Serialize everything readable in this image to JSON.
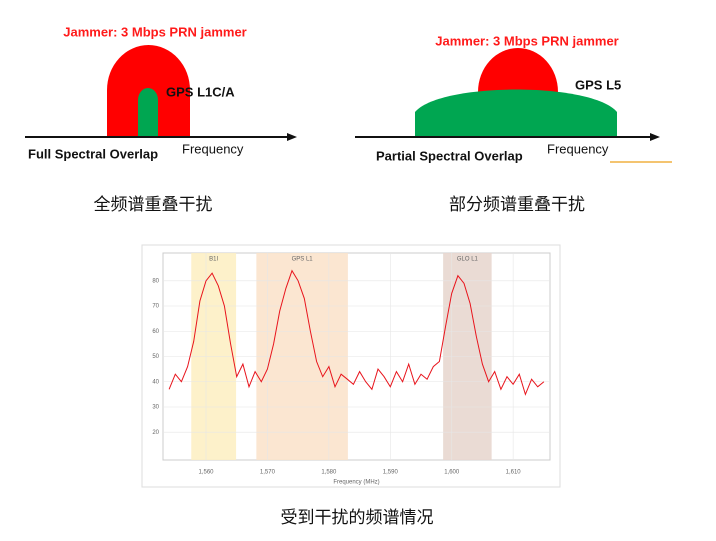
{
  "left_diagram": {
    "jammer_label": "Jammer: 3 Mbps PRN jammer",
    "signal_label": "GPS L1C/A",
    "overlap_label": "Full Spectral Overlap",
    "axis_label": "Frequency",
    "caption": "全频谱重叠干扰"
  },
  "right_diagram": {
    "jammer_label": "Jammer: 3 Mbps PRN jammer",
    "signal_label": "GPS L5",
    "overlap_label": "Partial Spectral Overlap",
    "axis_label": "Frequency",
    "caption": "部分频谱重叠干扰"
  },
  "chart_data": {
    "type": "line",
    "x_label": "Frequency (MHz)",
    "color": "#e8141c",
    "bands": [
      {
        "label": "B1I",
        "from": 1557.6,
        "to": 1564.9,
        "color": "#fdf0c4"
      },
      {
        "label": "GPS L1",
        "from": 1568.2,
        "to": 1583.1,
        "color": "#fbe3cc"
      },
      {
        "label": "GLO L1",
        "from": 1598.6,
        "to": 1606.5,
        "color": "#e8d7cf"
      }
    ],
    "x": [
      1554,
      1555,
      1556,
      1557,
      1558,
      1559,
      1560,
      1561,
      1562,
      1563,
      1564,
      1565,
      1566,
      1567,
      1568,
      1569,
      1570,
      1571,
      1572,
      1573,
      1574,
      1575,
      1576,
      1577,
      1578,
      1579,
      1580,
      1581,
      1582,
      1583,
      1584,
      1585,
      1586,
      1587,
      1588,
      1589,
      1590,
      1591,
      1592,
      1593,
      1594,
      1595,
      1596,
      1597,
      1598,
      1599,
      1600,
      1601,
      1602,
      1603,
      1604,
      1605,
      1606,
      1607,
      1608,
      1609,
      1610,
      1611,
      1612,
      1613,
      1614,
      1615
    ],
    "values": [
      37,
      43,
      40,
      46,
      56,
      72,
      80,
      83,
      78,
      70,
      55,
      42,
      47,
      38,
      44,
      40,
      45,
      55,
      68,
      77,
      84,
      80,
      73,
      60,
      48,
      42,
      46,
      38,
      43,
      41,
      39,
      44,
      40,
      37,
      45,
      42,
      38,
      44,
      40,
      47,
      39,
      43,
      41,
      46,
      48,
      62,
      75,
      82,
      79,
      71,
      58,
      47,
      40,
      44,
      37,
      42,
      39,
      43,
      35,
      41,
      38,
      40
    ],
    "xlim": [
      1553,
      1616
    ],
    "ylim": [
      9,
      91
    ],
    "xticks": [
      {
        "value": 1560,
        "label": "1,560"
      },
      {
        "value": 1570,
        "label": "1,570"
      },
      {
        "value": 1580,
        "label": "1,580"
      },
      {
        "value": 1590,
        "label": "1,590"
      },
      {
        "value": 1600,
        "label": "1,600"
      },
      {
        "value": 1610,
        "label": "1,610"
      }
    ],
    "yticks": [
      20,
      30,
      40,
      50,
      60,
      70,
      80
    ],
    "grid": true
  },
  "caption": "受到干扰的频谱情况"
}
